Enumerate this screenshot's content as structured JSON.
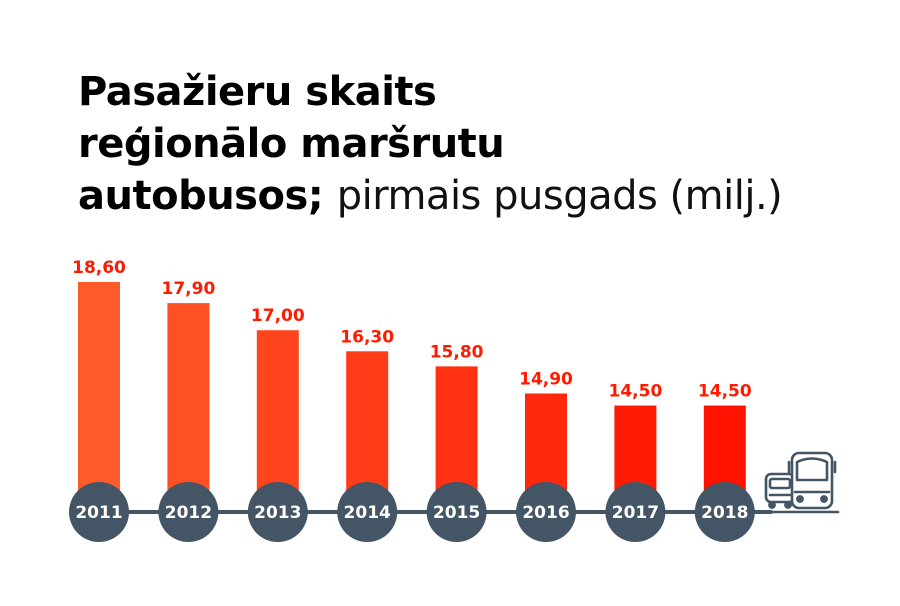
{
  "title": {
    "line1": "Pasažieru skaits",
    "line2": "reģionālo maršrutu",
    "line3_bold": "autobusos;",
    "line3_light": "pirmais pusgads (milj.)"
  },
  "icons": {
    "timeline_end": "bus-icon"
  },
  "colors": {
    "bar_start": "#ff5a2a",
    "bar_end": "#ff1200",
    "label": "#ff1a00",
    "circle": "#445566",
    "axis_line": "#445566"
  },
  "chart_data": {
    "type": "bar",
    "title": "Pasažieru skaits reģionālo maršrutu autobusos; pirmais pusgads (milj.)",
    "xlabel": "",
    "ylabel": "",
    "categories": [
      "2011",
      "2012",
      "2013",
      "2014",
      "2015",
      "2016",
      "2017",
      "2018"
    ],
    "values": [
      18.6,
      17.9,
      17.0,
      16.3,
      15.8,
      14.9,
      14.5,
      14.5
    ],
    "value_labels": [
      "18,60",
      "17,90",
      "17,00",
      "16,30",
      "15,80",
      "14,90",
      "14,50",
      "14,50"
    ],
    "ylim": [
      11.0,
      19.0
    ],
    "grid": false,
    "legend": "none"
  }
}
